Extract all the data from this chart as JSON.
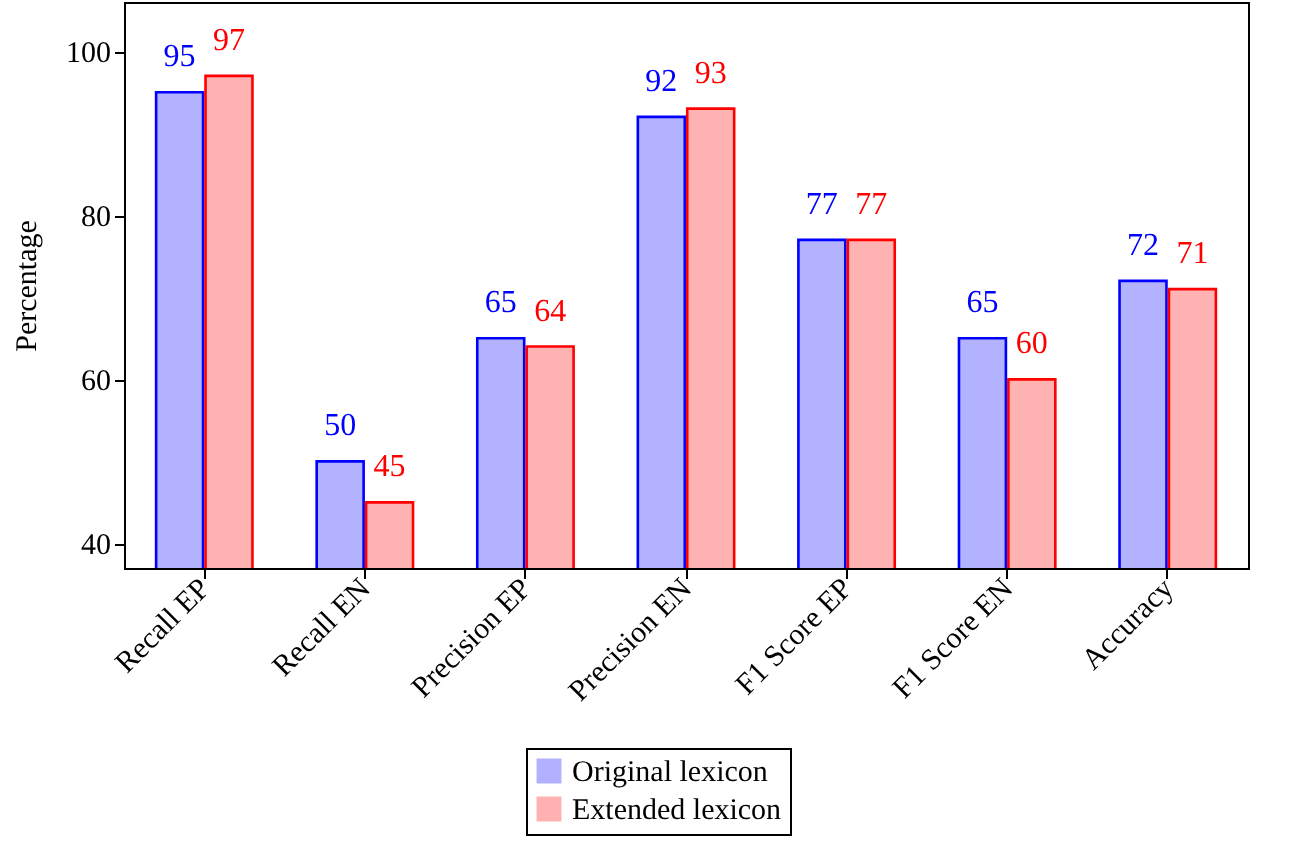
{
  "chart_data": {
    "type": "bar",
    "ylabel": "Percentage",
    "categories": [
      "Recall EP",
      "Recall EN",
      "Precision EP",
      "Precision EN",
      "F1 Score EP",
      "F1 Score EN",
      "Accuracy"
    ],
    "series": [
      {
        "name": "Original lexicon",
        "color": "#0000ff",
        "values": [
          95,
          50,
          65,
          92,
          77,
          65,
          72
        ]
      },
      {
        "name": "Extended lexicon",
        "color": "#ff0000",
        "values": [
          97,
          45,
          64,
          93,
          77,
          60,
          71
        ]
      }
    ],
    "ylim": [
      37,
      106
    ],
    "yticks": [
      40,
      60,
      80,
      100
    ],
    "data_labels": true,
    "legend": "bottom",
    "grid": false
  }
}
